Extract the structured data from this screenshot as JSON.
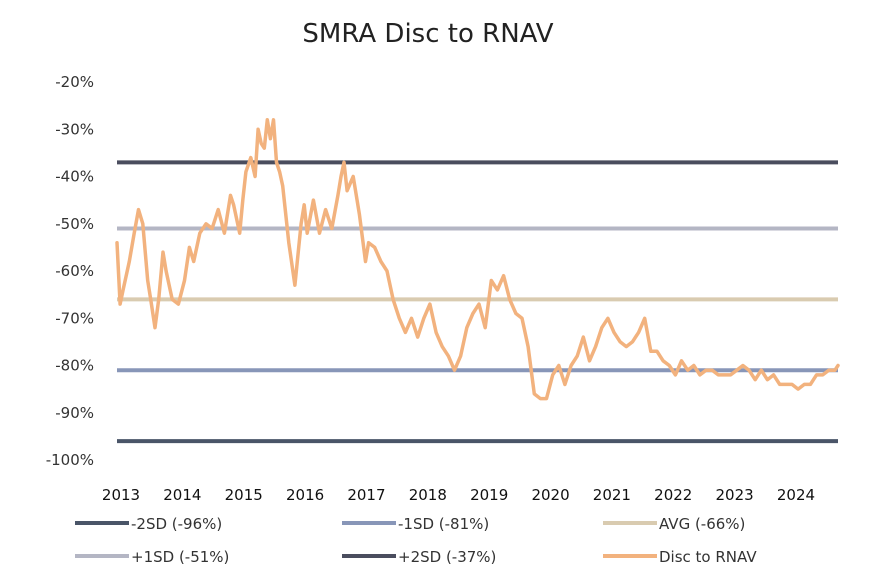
{
  "chart_data": {
    "type": "line",
    "title": "SMRA Disc to RNAV",
    "xlabel": "",
    "ylabel": "",
    "ylim": [
      -100,
      -20
    ],
    "xlim": [
      2013.0,
      2024.75
    ],
    "y_ticks": [
      -20,
      -30,
      -40,
      -50,
      -60,
      -70,
      -80,
      -90,
      -100
    ],
    "y_tick_labels": [
      "-20%",
      "-30%",
      "-40%",
      "-50%",
      "-60%",
      "-70%",
      "-80%",
      "-90%",
      "-100%"
    ],
    "x_ticks": [
      2013,
      2014,
      2015,
      2016,
      2017,
      2018,
      2019,
      2020,
      2021,
      2022,
      2023,
      2024
    ],
    "x_tick_labels": [
      "2013",
      "2014",
      "2015",
      "2016",
      "2017",
      "2018",
      "2019",
      "2020",
      "2021",
      "2022",
      "2023",
      "2024"
    ],
    "grid": false,
    "legend_position": "bottom",
    "reference_lines": [
      {
        "name": "-2SD (-96%)",
        "value": -96,
        "color": "#4a5568"
      },
      {
        "name": "-1SD (-81%)",
        "value": -81,
        "color": "#8896b8"
      },
      {
        "name": "AVG (-66%)",
        "value": -66,
        "color": "#d9cbb0"
      },
      {
        "name": "+1SD (-51%)",
        "value": -51,
        "color": "#b4b6c4"
      },
      {
        "name": "+2SD (-37%)",
        "value": -37,
        "color": "#4a4d5e"
      }
    ],
    "series": [
      {
        "name": "Disc to RNAV",
        "color": "#f2b27e",
        "x": [
          2013.0,
          2013.05,
          2013.1,
          2013.2,
          2013.28,
          2013.35,
          2013.42,
          2013.5,
          2013.55,
          2013.62,
          2013.68,
          2013.75,
          2013.8,
          2013.9,
          2014.0,
          2014.1,
          2014.18,
          2014.25,
          2014.35,
          2014.45,
          2014.55,
          2014.65,
          2014.75,
          2014.85,
          2014.9,
          2015.0,
          2015.05,
          2015.1,
          2015.18,
          2015.25,
          2015.3,
          2015.35,
          2015.4,
          2015.45,
          2015.5,
          2015.55,
          2015.6,
          2015.65,
          2015.7,
          2015.8,
          2015.9,
          2016.0,
          2016.05,
          2016.1,
          2016.2,
          2016.3,
          2016.4,
          2016.5,
          2016.6,
          2016.65,
          2016.7,
          2016.75,
          2016.85,
          2016.95,
          2017.05,
          2017.1,
          2017.2,
          2017.3,
          2017.4,
          2017.5,
          2017.6,
          2017.7,
          2017.8,
          2017.9,
          2018.0,
          2018.1,
          2018.2,
          2018.3,
          2018.4,
          2018.5,
          2018.6,
          2018.7,
          2018.8,
          2018.9,
          2019.0,
          2019.1,
          2019.2,
          2019.3,
          2019.4,
          2019.5,
          2019.6,
          2019.7,
          2019.8,
          2019.9,
          2020.0,
          2020.1,
          2020.2,
          2020.3,
          2020.4,
          2020.5,
          2020.6,
          2020.7,
          2020.8,
          2020.9,
          2021.0,
          2021.1,
          2021.2,
          2021.3,
          2021.4,
          2021.5,
          2021.6,
          2021.7,
          2021.8,
          2021.9,
          2022.0,
          2022.1,
          2022.2,
          2022.3,
          2022.4,
          2022.5,
          2022.6,
          2022.7,
          2022.8,
          2022.9,
          2023.0,
          2023.1,
          2023.2,
          2023.3,
          2023.4,
          2023.5,
          2023.6,
          2023.7,
          2023.8,
          2023.9,
          2024.0,
          2024.1,
          2024.2,
          2024.3,
          2024.4,
          2024.5,
          2024.6,
          2024.7,
          2024.75
        ],
        "values": [
          -54,
          -67,
          -64,
          -58,
          -52,
          -47,
          -50,
          -62,
          -66,
          -72,
          -66,
          -56,
          -60,
          -66,
          -67,
          -62,
          -55,
          -58,
          -52,
          -50,
          -51,
          -47,
          -52,
          -44,
          -46,
          -52,
          -45,
          -39,
          -36,
          -40,
          -30,
          -33,
          -34,
          -28,
          -32,
          -28,
          -37,
          -39,
          -42,
          -54,
          -63,
          -50,
          -46,
          -52,
          -45,
          -52,
          -47,
          -51,
          -44,
          -40,
          -37,
          -43,
          -40,
          -48,
          -58,
          -54,
          -55,
          -58,
          -60,
          -66,
          -70,
          -73,
          -70,
          -74,
          -70,
          -67,
          -73,
          -76,
          -78,
          -81,
          -78,
          -72,
          -69,
          -67,
          -72,
          -62,
          -64,
          -61,
          -66,
          -69,
          -70,
          -76,
          -86,
          -87,
          -87,
          -82,
          -80,
          -84,
          -80,
          -78,
          -74,
          -79,
          -76,
          -72,
          -70,
          -73,
          -75,
          -76,
          -75,
          -73,
          -70,
          -77,
          -77,
          -79,
          -80,
          -82,
          -79,
          -81,
          -80,
          -82,
          -81,
          -81,
          -82,
          -82,
          -82,
          -81,
          -80,
          -81,
          -83,
          -81,
          -83,
          -82,
          -84,
          -84,
          -84,
          -85,
          -84,
          -84,
          -82,
          -82,
          -81,
          -81,
          -80
        ]
      }
    ]
  }
}
